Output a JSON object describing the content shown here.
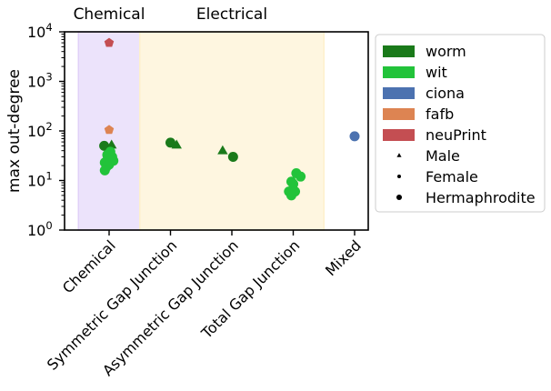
{
  "chart_data": {
    "type": "scatter",
    "ylabel": "max out-degree",
    "yscale": "log",
    "ylim": [
      1,
      10000
    ],
    "ytick_labels": [
      {
        "value": 1,
        "exp": "0"
      },
      {
        "value": 10,
        "exp": "1"
      },
      {
        "value": 100,
        "exp": "2"
      },
      {
        "value": 1000,
        "exp": "3"
      },
      {
        "value": 10000,
        "exp": "4"
      }
    ],
    "categories": [
      "Chemical",
      "Symmetric Gap Junction",
      "Asymmetric Gap Junction",
      "Total Gap Junction",
      "Mixed"
    ],
    "regions": [
      {
        "label": "Chemical",
        "from": -0.5,
        "to": 0.5,
        "color": "#e0d0f8"
      },
      {
        "label": "Electrical",
        "from": 0.5,
        "to": 3.5,
        "color": "#fdf0cc"
      }
    ],
    "legend": {
      "placement": "outside-right",
      "series": [
        {
          "name": "worm",
          "color": "#1a7a1a"
        },
        {
          "name": "wit",
          "color": "#22c33a"
        },
        {
          "name": "ciona",
          "color": "#4c72b0"
        },
        {
          "name": "fafb",
          "color": "#dd8452"
        },
        {
          "name": "neuPrint",
          "color": "#c44e52"
        }
      ],
      "markers": [
        {
          "name": "Male",
          "shape": "triangle"
        },
        {
          "name": "Female",
          "shape": "small-circle"
        },
        {
          "name": "Hermaphrodite",
          "shape": "circle"
        }
      ]
    },
    "points": [
      {
        "series": "neuPrint",
        "cat": 0,
        "dx": 0.0,
        "y": 6000,
        "shape": "pentagon"
      },
      {
        "series": "fafb",
        "cat": 0,
        "dx": 0.0,
        "y": 105,
        "shape": "pentagon"
      },
      {
        "series": "worm",
        "cat": 0,
        "dx": -0.08,
        "y": 50,
        "shape": "circle"
      },
      {
        "series": "worm",
        "cat": 0,
        "dx": 0.04,
        "y": 52,
        "shape": "triangle"
      },
      {
        "series": "wit",
        "cat": 0,
        "dx": 0.02,
        "y": 38,
        "shape": "circle"
      },
      {
        "series": "wit",
        "cat": 0,
        "dx": -0.03,
        "y": 33,
        "shape": "circle"
      },
      {
        "series": "wit",
        "cat": 0,
        "dx": 0.05,
        "y": 30,
        "shape": "circle"
      },
      {
        "series": "wit",
        "cat": 0,
        "dx": -0.02,
        "y": 28,
        "shape": "circle"
      },
      {
        "series": "wit",
        "cat": 0,
        "dx": 0.07,
        "y": 25,
        "shape": "circle"
      },
      {
        "series": "wit",
        "cat": 0,
        "dx": -0.07,
        "y": 23,
        "shape": "circle"
      },
      {
        "series": "wit",
        "cat": 0,
        "dx": 0.0,
        "y": 21,
        "shape": "circle"
      },
      {
        "series": "wit",
        "cat": 0,
        "dx": -0.04,
        "y": 19,
        "shape": "circle"
      },
      {
        "series": "wit",
        "cat": 0,
        "dx": -0.07,
        "y": 16,
        "shape": "circle"
      },
      {
        "series": "worm",
        "cat": 1,
        "dx": 0.0,
        "y": 58,
        "shape": "circle"
      },
      {
        "series": "worm",
        "cat": 1,
        "dx": 0.1,
        "y": 52,
        "shape": "triangle"
      },
      {
        "series": "worm",
        "cat": 2,
        "dx": -0.15,
        "y": 40,
        "shape": "triangle"
      },
      {
        "series": "worm",
        "cat": 2,
        "dx": 0.02,
        "y": 30,
        "shape": "circle"
      },
      {
        "series": "wit",
        "cat": 3,
        "dx": 0.05,
        "y": 14,
        "shape": "circle"
      },
      {
        "series": "wit",
        "cat": 3,
        "dx": 0.12,
        "y": 12,
        "shape": "circle"
      },
      {
        "series": "wit",
        "cat": 3,
        "dx": -0.03,
        "y": 9.5,
        "shape": "circle"
      },
      {
        "series": "wit",
        "cat": 3,
        "dx": 0.0,
        "y": 8.5,
        "shape": "circle"
      },
      {
        "series": "wit",
        "cat": 3,
        "dx": -0.07,
        "y": 6,
        "shape": "circle"
      },
      {
        "series": "wit",
        "cat": 3,
        "dx": 0.03,
        "y": 6,
        "shape": "circle"
      },
      {
        "series": "wit",
        "cat": 3,
        "dx": -0.03,
        "y": 5,
        "shape": "circle"
      },
      {
        "series": "ciona",
        "cat": 4,
        "dx": 0.0,
        "y": 78,
        "shape": "circle"
      }
    ]
  }
}
